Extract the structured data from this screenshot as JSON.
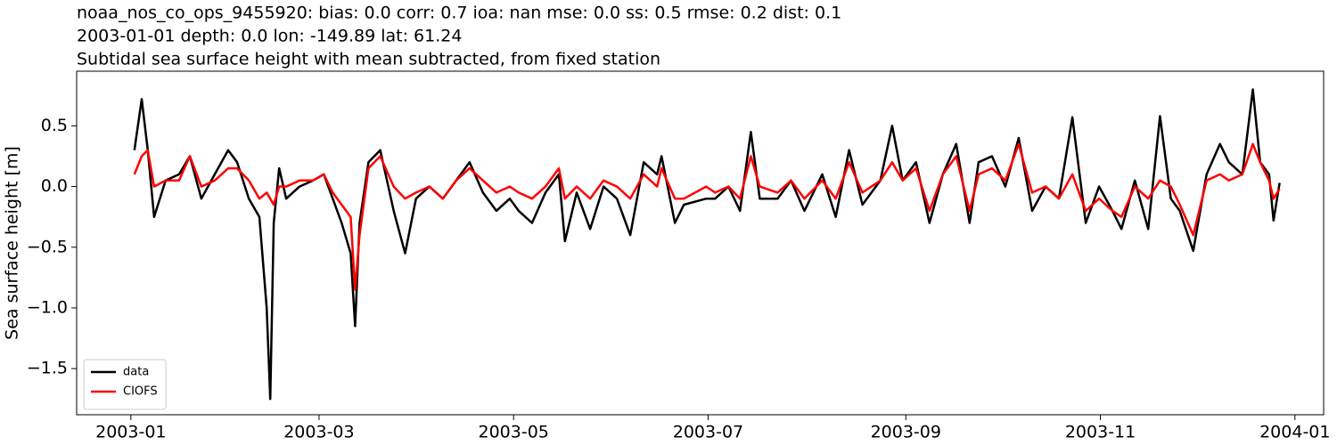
{
  "chart_data": {
    "type": "line",
    "title": "noaa_nos_co_ops_9455920: bias: 0.0  corr: 0.7  ioa: nan  mse: 0.0  ss: 0.5  rmse: 0.2  dist: 0.1",
    "subtitle": "2003-01-01 depth: 0.0 lon: -149.89 lat: 61.24",
    "subtitle2": "Subtidal sea surface height with mean subtracted, from fixed station",
    "y_label": "Sea surface height [m]",
    "x": [
      1.1,
      3.4,
      5.3,
      7.3,
      10.9,
      15.1,
      18.5,
      22.1,
      26.3,
      30.5,
      33.3,
      37.0,
      40.3,
      42.6,
      43.7,
      44.8,
      46.5,
      48.7,
      52.9,
      57.1,
      60.5,
      63.3,
      66.1,
      68.9,
      70.3,
      71.7,
      74.5,
      78.2,
      82.4,
      86.0,
      89.4,
      93.6,
      97.8,
      102.0,
      106.2,
      110.4,
      114.6,
      118.8,
      121.6,
      125.8,
      130.0,
      134.2,
      136.1,
      139.8,
      144.0,
      148.2,
      152.4,
      156.6,
      160.8,
      165.0,
      166.4,
      170.6,
      173.4,
      180.4,
      183.2,
      187.4,
      191.0,
      194.4,
      197.2,
      202.8,
      207.0,
      211.2,
      216.8,
      221.0,
      225.2,
      229.4,
      235.0,
      238.7,
      242.0,
      246.2,
      250.4,
      254.6,
      258.8,
      263.0,
      265.8,
      270.0,
      274.2,
      278.4,
      282.6,
      286.8,
      291.0,
      295.2,
      299.4,
      303.6,
      307.8,
      310.6,
      314.8,
      319.0,
      322.7,
      326.1,
      328.9,
      333.1,
      337.3,
      341.5,
      344.3,
      348.5,
      351.8,
      354.1,
      356.9,
      358.3,
      360.2
    ],
    "series": [
      {
        "name": "data",
        "color": "#000000",
        "values": [
          0.3,
          0.72,
          0.3,
          -0.25,
          0.05,
          0.1,
          0.25,
          -0.1,
          0.1,
          0.3,
          0.2,
          -0.1,
          -0.25,
          -1.0,
          -1.75,
          -0.3,
          0.15,
          -0.1,
          0.0,
          0.05,
          0.1,
          -0.1,
          -0.3,
          -0.55,
          -1.15,
          -0.3,
          0.2,
          0.3,
          -0.2,
          -0.55,
          -0.1,
          0.0,
          -0.1,
          0.05,
          0.2,
          -0.05,
          -0.2,
          -0.1,
          -0.2,
          -0.3,
          -0.05,
          0.1,
          -0.45,
          -0.05,
          -0.35,
          0.0,
          -0.1,
          -0.4,
          0.2,
          0.1,
          0.25,
          -0.3,
          -0.15,
          -0.1,
          -0.1,
          0.0,
          -0.2,
          0.45,
          -0.1,
          -0.1,
          0.05,
          -0.2,
          0.1,
          -0.25,
          0.3,
          -0.15,
          0.05,
          0.5,
          0.05,
          0.2,
          -0.3,
          0.1,
          0.35,
          -0.3,
          0.2,
          0.25,
          0.0,
          0.4,
          -0.2,
          0.0,
          -0.1,
          0.57,
          -0.3,
          0.0,
          -0.2,
          -0.35,
          0.05,
          -0.35,
          0.58,
          -0.1,
          -0.2,
          -0.53,
          0.1,
          0.35,
          0.2,
          0.1,
          0.8,
          0.2,
          0.1,
          -0.28,
          0.03
        ]
      },
      {
        "name": "CIOFS",
        "color": "#ff0000",
        "values": [
          0.1,
          0.25,
          0.3,
          0.0,
          0.05,
          0.05,
          0.25,
          0.0,
          0.05,
          0.15,
          0.15,
          0.05,
          -0.1,
          -0.05,
          -0.1,
          -0.15,
          0.0,
          0.0,
          0.05,
          0.05,
          0.1,
          -0.05,
          -0.15,
          -0.25,
          -0.85,
          -0.4,
          0.15,
          0.25,
          0.0,
          -0.1,
          -0.05,
          0.0,
          -0.1,
          0.05,
          0.15,
          0.05,
          -0.05,
          0.0,
          -0.05,
          -0.1,
          0.0,
          0.15,
          -0.1,
          0.0,
          -0.1,
          0.05,
          0.0,
          -0.1,
          0.1,
          0.0,
          0.15,
          -0.1,
          -0.1,
          0.0,
          -0.05,
          0.0,
          -0.1,
          0.25,
          0.0,
          -0.05,
          0.05,
          -0.1,
          0.05,
          -0.1,
          0.2,
          -0.05,
          0.05,
          0.2,
          0.05,
          0.15,
          -0.2,
          0.1,
          0.25,
          -0.2,
          0.1,
          0.15,
          0.05,
          0.35,
          -0.05,
          0.0,
          -0.1,
          0.1,
          -0.2,
          -0.1,
          -0.2,
          -0.25,
          0.0,
          -0.1,
          0.05,
          0.0,
          -0.15,
          -0.4,
          0.05,
          0.1,
          0.05,
          0.1,
          0.35,
          0.2,
          0.05,
          -0.1,
          -0.02
        ]
      }
    ],
    "xlim": [
      -17,
      374
    ],
    "xticks": [
      {
        "value": 0,
        "label": "2003-01"
      },
      {
        "value": 59,
        "label": "2003-03"
      },
      {
        "value": 120,
        "label": "2003-05"
      },
      {
        "value": 181,
        "label": "2003-07"
      },
      {
        "value": 243,
        "label": "2003-09"
      },
      {
        "value": 304,
        "label": "2003-11"
      },
      {
        "value": 365,
        "label": "2004-01"
      }
    ],
    "ylim": [
      -1.88,
      0.95
    ],
    "yticks": [
      {
        "value": -1.5,
        "label": "−1.5"
      },
      {
        "value": -1.0,
        "label": "−1.0"
      },
      {
        "value": -0.5,
        "label": "−0.5"
      },
      {
        "value": 0.0,
        "label": "0.0"
      },
      0.5
    ],
    "grid": false,
    "legend": "lower left"
  }
}
